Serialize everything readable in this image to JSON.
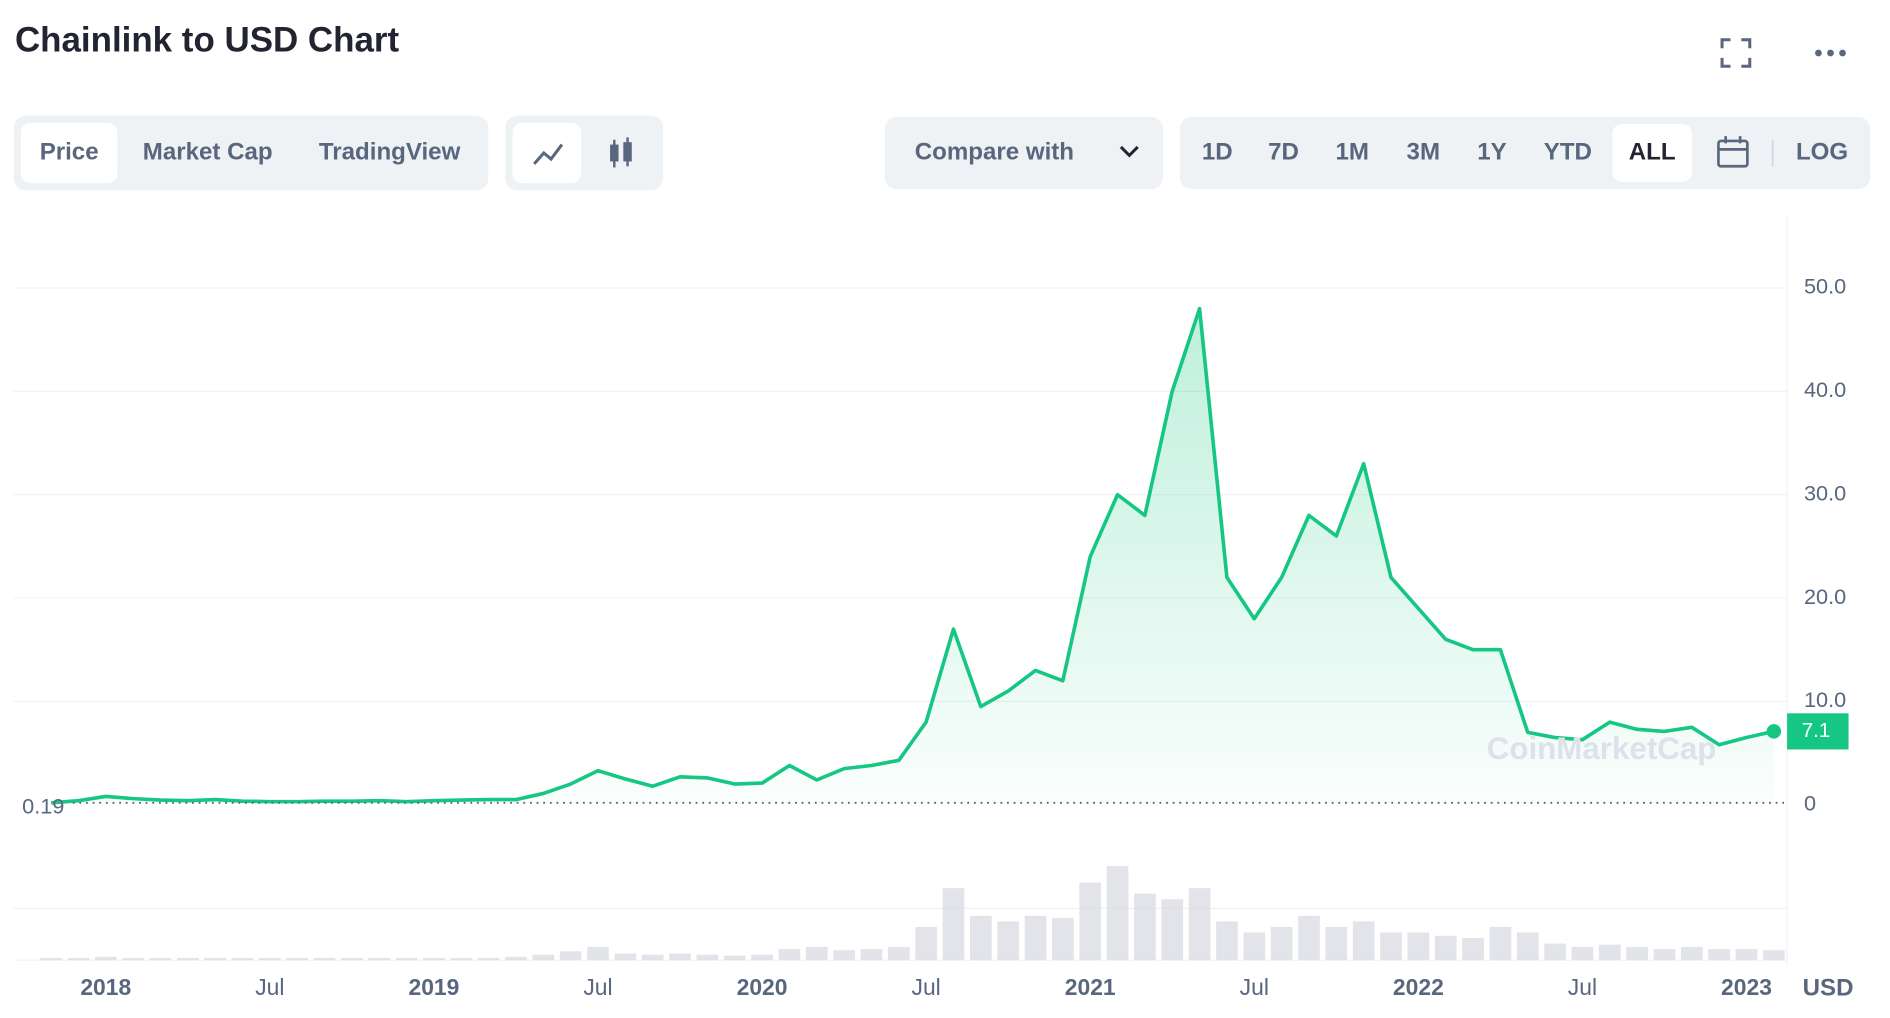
{
  "header": {
    "title": "Chainlink to USD Chart"
  },
  "toolbar": {
    "tabs": [
      "Price",
      "Market Cap",
      "TradingView"
    ],
    "compare": "Compare with",
    "ranges": [
      "1D",
      "7D",
      "1M",
      "3M",
      "1Y",
      "YTD",
      "ALL"
    ],
    "log": "LOG"
  },
  "chart_data": {
    "type": "line",
    "x": [
      "2017-11",
      "2017-12",
      "2018-01",
      "2018-02",
      "2018-03",
      "2018-04",
      "2018-05",
      "2018-06",
      "2018-07",
      "2018-08",
      "2018-09",
      "2018-10",
      "2018-11",
      "2018-12",
      "2019-01",
      "2019-02",
      "2019-03",
      "2019-04",
      "2019-05",
      "2019-06",
      "2019-07",
      "2019-08",
      "2019-09",
      "2019-10",
      "2019-11",
      "2019-12",
      "2020-01",
      "2020-02",
      "2020-03",
      "2020-04",
      "2020-05",
      "2020-06",
      "2020-07",
      "2020-08",
      "2020-09",
      "2020-10",
      "2020-11",
      "2020-12",
      "2021-01",
      "2021-02",
      "2021-03",
      "2021-04",
      "2021-05",
      "2021-06",
      "2021-07",
      "2021-08",
      "2021-09",
      "2021-10",
      "2021-11",
      "2021-12",
      "2022-01",
      "2022-02",
      "2022-03",
      "2022-04",
      "2022-05",
      "2022-06",
      "2022-07",
      "2022-08",
      "2022-09",
      "2022-10",
      "2022-11",
      "2022-12",
      "2023-01",
      "2023-02"
    ],
    "series": [
      {
        "name": "Price",
        "color": "#16c784",
        "values": [
          0.19,
          0.4,
          0.8,
          0.6,
          0.45,
          0.4,
          0.5,
          0.35,
          0.3,
          0.3,
          0.35,
          0.35,
          0.4,
          0.3,
          0.4,
          0.45,
          0.5,
          0.5,
          1.1,
          2.0,
          3.3,
          2.5,
          1.8,
          2.7,
          2.6,
          2.0,
          2.1,
          3.8,
          2.4,
          3.5,
          3.8,
          4.3,
          8.0,
          17,
          9.5,
          11,
          13,
          12,
          24,
          30,
          28,
          40,
          48,
          22,
          18,
          22,
          28,
          26,
          33,
          22,
          19,
          16,
          15,
          15,
          7,
          6.5,
          6.3,
          8,
          7.3,
          7.1,
          7.5,
          5.8,
          6.5,
          7.1
        ]
      }
    ],
    "volume": [
      2,
      2,
      3,
      2,
      2,
      2,
      2,
      2,
      2,
      2,
      2,
      2,
      2,
      2,
      2,
      2,
      2,
      3,
      5,
      8,
      12,
      6,
      5,
      6,
      5,
      4,
      5,
      10,
      12,
      9,
      10,
      12,
      30,
      65,
      40,
      35,
      40,
      38,
      70,
      85,
      60,
      55,
      65,
      35,
      25,
      30,
      40,
      30,
      35,
      25,
      25,
      22,
      20,
      30,
      25,
      15,
      12,
      14,
      12,
      10,
      12,
      10,
      10,
      9
    ],
    "xlim": [
      "2017-11",
      "2023-02"
    ],
    "xticks": [
      {
        "value": "2018-01",
        "label": "2018"
      },
      {
        "value": "2018-07",
        "label": "Jul"
      },
      {
        "value": "2019-01",
        "label": "2019"
      },
      {
        "value": "2019-07",
        "label": "Jul"
      },
      {
        "value": "2020-01",
        "label": "2020"
      },
      {
        "value": "2020-07",
        "label": "Jul"
      },
      {
        "value": "2021-01",
        "label": "2021"
      },
      {
        "value": "2021-07",
        "label": "Jul"
      },
      {
        "value": "2022-01",
        "label": "2022"
      },
      {
        "value": "2022-07",
        "label": "Jul"
      },
      {
        "value": "2023-01",
        "label": "2023"
      }
    ],
    "ylim": [
      0,
      57
    ],
    "yticks": [
      0,
      {
        "value": 10,
        "label": "10.0"
      },
      {
        "value": 20,
        "label": "20.0"
      },
      {
        "value": 30,
        "label": "30.0"
      },
      {
        "value": 40,
        "label": "40.0"
      },
      {
        "value": 50,
        "label": "50.0"
      }
    ],
    "grid": true,
    "start_price": 0.19,
    "current_price": 7.1,
    "unit": "USD",
    "watermark": "CoinMarketCap"
  }
}
